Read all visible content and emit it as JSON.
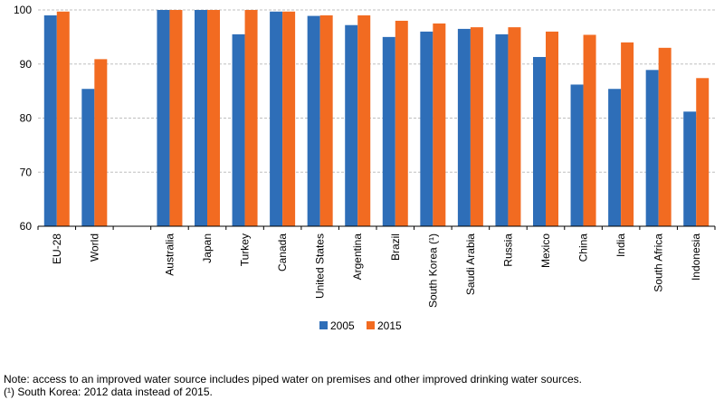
{
  "chart_data": {
    "type": "bar",
    "categories": [
      "EU-28",
      "World",
      "",
      "Australia",
      "Japan",
      "Turkey",
      "Canada",
      "United States",
      "Argentina",
      "Brazil",
      "South Korea (¹)",
      "Saudi Arabia",
      "Russia",
      "Mexico",
      "China",
      "India",
      "South Africa",
      "Indonesia"
    ],
    "series": [
      {
        "name": "2005",
        "color": "#2E6EB8",
        "values": [
          99.0,
          85.4,
          null,
          100.0,
          100.0,
          95.5,
          99.7,
          98.9,
          97.2,
          95.0,
          96.0,
          96.5,
          95.5,
          91.3,
          86.2,
          85.4,
          88.9,
          81.2
        ]
      },
      {
        "name": "2015",
        "color": "#F26B21",
        "values": [
          99.7,
          90.9,
          null,
          100.0,
          100.0,
          100.0,
          99.7,
          99.0,
          99.0,
          98.0,
          97.5,
          96.8,
          96.8,
          96.0,
          95.4,
          94.0,
          93.0,
          87.4
        ]
      }
    ],
    "ylim": [
      60,
      100
    ],
    "yticks": [
      60,
      70,
      80,
      90,
      100
    ],
    "grid": true,
    "legend": "bottom-center"
  },
  "notes": [
    "Note: access to an improved water source includes piped water on premises and other improved drinking water sources.",
    "(¹) South Korea: 2012 data instead of 2015."
  ]
}
